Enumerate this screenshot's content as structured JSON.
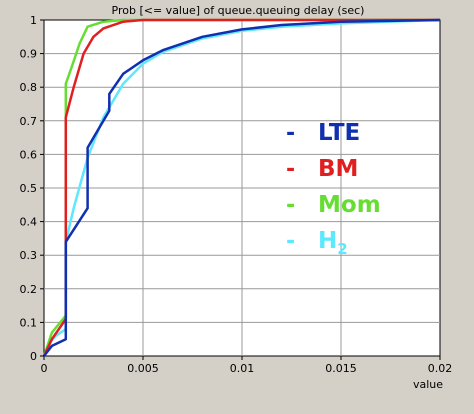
{
  "chart_data": {
    "type": "line",
    "title": "Prob [<= value] of queue.queuing delay (sec)",
    "xlabel": "value",
    "ylabel": "",
    "xlim": [
      0,
      0.02
    ],
    "ylim": [
      0,
      1
    ],
    "x_ticks": [
      0,
      0.005,
      0.01,
      0.015,
      0.02
    ],
    "x_tick_labels": [
      "0",
      "0.005",
      "0.01",
      "0.015",
      "0.02"
    ],
    "y_ticks": [
      0,
      0.1,
      0.2,
      0.3,
      0.4,
      0.5,
      0.6,
      0.7,
      0.8,
      0.9,
      1
    ],
    "y_tick_labels": [
      "0",
      "0.1",
      "0.2",
      "0.3",
      "0.4",
      "0.5",
      "0.6",
      "0.7",
      "0.8",
      "0.9",
      "1"
    ],
    "grid": true,
    "legend_position": "right-center",
    "series": [
      {
        "name": "H",
        "name_subscript": "2",
        "color": "#5ee8ff",
        "points": [
          [
            0,
            0
          ],
          [
            0.0003,
            0.04
          ],
          [
            0.0006,
            0.06
          ],
          [
            0.0011,
            0.08
          ],
          [
            0.0011,
            0.34
          ],
          [
            0.0015,
            0.44
          ],
          [
            0.0022,
            0.59
          ],
          [
            0.003,
            0.71
          ],
          [
            0.004,
            0.81
          ],
          [
            0.005,
            0.87
          ],
          [
            0.006,
            0.905
          ],
          [
            0.008,
            0.945
          ],
          [
            0.01,
            0.968
          ],
          [
            0.012,
            0.98
          ],
          [
            0.015,
            0.99
          ],
          [
            0.02,
            1
          ]
        ]
      },
      {
        "name": "Mom",
        "color": "#66dd33",
        "points": [
          [
            0,
            0
          ],
          [
            0.0004,
            0.07
          ],
          [
            0.0011,
            0.12
          ],
          [
            0.0011,
            0.81
          ],
          [
            0.0014,
            0.86
          ],
          [
            0.0018,
            0.93
          ],
          [
            0.0022,
            0.98
          ],
          [
            0.003,
            0.995
          ],
          [
            0.004,
            1
          ],
          [
            0.02,
            1
          ]
        ]
      },
      {
        "name": "BM",
        "color": "#e02020",
        "points": [
          [
            0,
            0
          ],
          [
            0.0004,
            0.05
          ],
          [
            0.0011,
            0.11
          ],
          [
            0.0011,
            0.71
          ],
          [
            0.0015,
            0.8
          ],
          [
            0.002,
            0.9
          ],
          [
            0.0025,
            0.95
          ],
          [
            0.003,
            0.975
          ],
          [
            0.004,
            0.995
          ],
          [
            0.005,
            1
          ],
          [
            0.02,
            1
          ]
        ]
      },
      {
        "name": "LTE",
        "color": "#1030b0",
        "points": [
          [
            0,
            0
          ],
          [
            0.0004,
            0.03
          ],
          [
            0.0011,
            0.05
          ],
          [
            0.0011,
            0.34
          ],
          [
            0.0022,
            0.44
          ],
          [
            0.0022,
            0.62
          ],
          [
            0.0033,
            0.73
          ],
          [
            0.0033,
            0.78
          ],
          [
            0.004,
            0.84
          ],
          [
            0.005,
            0.88
          ],
          [
            0.006,
            0.91
          ],
          [
            0.008,
            0.95
          ],
          [
            0.01,
            0.972
          ],
          [
            0.012,
            0.985
          ],
          [
            0.015,
            0.995
          ],
          [
            0.02,
            1
          ]
        ]
      }
    ],
    "legend": [
      {
        "label": "LTE",
        "subscript": "",
        "color": "#1030b0"
      },
      {
        "label": "BM",
        "subscript": "",
        "color": "#e02020"
      },
      {
        "label": "Mom",
        "subscript": "",
        "color": "#66dd33"
      },
      {
        "label": "H",
        "subscript": "2",
        "color": "#5ee8ff"
      }
    ],
    "colors": {
      "background": "#d4d0c8",
      "plot_area": "#ffffff",
      "grid": "#999999",
      "axis": "#000000"
    }
  }
}
